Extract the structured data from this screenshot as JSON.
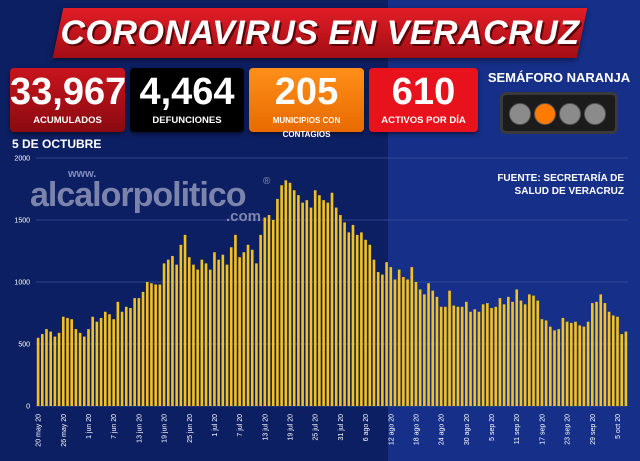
{
  "header": {
    "title": "CORONAVIRUS EN VERACRUZ"
  },
  "stats": [
    {
      "value": "33,967",
      "label": "ACUMULADOS"
    },
    {
      "value": "4,464",
      "label": "DEFUNCIONES"
    },
    {
      "value": "205",
      "label": "MUNICIPIOS CON CONTAGIOS"
    },
    {
      "value": "610",
      "label": "ACTIVOS POR DÍA"
    }
  ],
  "semaforo": {
    "label": "SEMÁFORO NARANJA",
    "active_color": "#ff7a00"
  },
  "date_label": "5 DE OCTUBRE",
  "source": {
    "line1": "FUENTE: SECRETARÍA DE",
    "line2": "SALUD DE VERACRUZ"
  },
  "watermark": {
    "prefix": "www.",
    "name": "alcalorpolitico",
    "suffix": ".com",
    "mark": "®"
  },
  "colors": {
    "bar": "#f5c21b",
    "background": "#0d1f63",
    "banner": "#d7121b"
  },
  "chart_data": {
    "type": "bar",
    "title": "",
    "xlabel": "",
    "ylabel": "",
    "ylim": [
      0,
      2000
    ],
    "yticks": [
      0,
      500,
      1000,
      1500,
      2000
    ],
    "grid": true,
    "x_tick_labels": [
      "20 may 20",
      "26 may 20",
      "1 jun 20",
      "7 jun 20",
      "13 jun 20",
      "19 jun 20",
      "25 jun 20",
      "1 jul 20",
      "7 jul 20",
      "13 jul 20",
      "19 jul 20",
      "25 jul 20",
      "31 jul 20",
      "6 ago 20",
      "12 ago 20",
      "18 ago 20",
      "24 ago 20",
      "30 ago 20",
      "5 sep 20",
      "11 sep 20",
      "17 sep 20",
      "23 sep 20",
      "29 sep 20",
      "5 oct 20"
    ],
    "start_date": "2020-05-20",
    "series": [
      {
        "values": [
          550,
          580,
          620,
          600,
          560,
          590,
          720,
          710,
          700,
          620,
          590,
          560,
          620,
          720,
          680,
          710,
          760,
          740,
          700,
          840,
          760,
          800,
          790,
          870,
          870,
          920,
          1000,
          990,
          980,
          980,
          1150,
          1180,
          1210,
          1140,
          1300,
          1380,
          1200,
          1140,
          1100,
          1180,
          1150,
          1100,
          1240,
          1180,
          1220,
          1140,
          1280,
          1380,
          1200,
          1240,
          1300,
          1260,
          1150,
          1380,
          1520,
          1540,
          1500,
          1670,
          1780,
          1820,
          1800,
          1740,
          1700,
          1640,
          1660,
          1600,
          1740,
          1700,
          1660,
          1640,
          1720,
          1600,
          1540,
          1480,
          1400,
          1460,
          1380,
          1400,
          1340,
          1300,
          1180,
          1080,
          1060,
          1160,
          1120,
          1020,
          1100,
          1040,
          1020,
          1120,
          1000,
          940,
          900,
          990,
          930,
          880,
          800,
          800,
          930,
          810,
          800,
          800,
          840,
          760,
          780,
          760,
          820,
          830,
          790,
          800,
          870,
          820,
          880,
          840,
          940,
          850,
          820,
          900,
          890,
          850,
          700,
          690,
          640,
          610,
          620,
          710,
          680,
          670,
          680,
          650,
          640,
          680,
          830,
          840,
          900,
          830,
          760,
          730,
          720,
          580,
          600
        ]
      }
    ]
  }
}
